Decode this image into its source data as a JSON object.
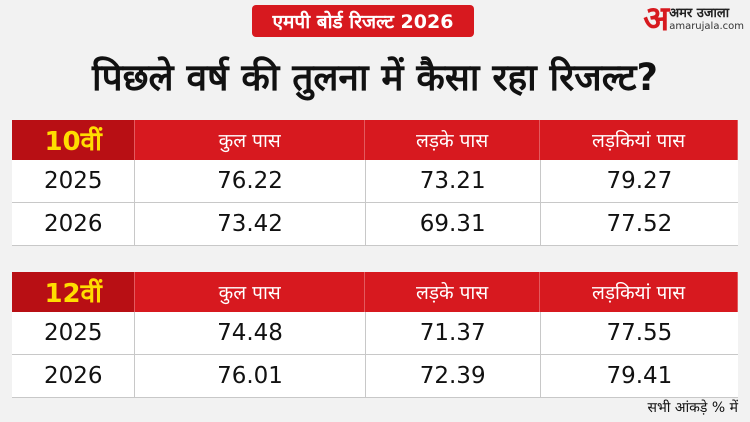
{
  "badge": "एमपी बोर्ड रिजल्ट 2026",
  "logo": {
    "mark": "अ",
    "name": "अमर उजाला",
    "site": "amarujala.com"
  },
  "title": "पिछले वर्ष की तुलना में कैसा रहा रिजल्ट?",
  "tables": [
    {
      "grade": "10वीं",
      "columns": [
        "कुल पास",
        "लड़के पास",
        "लड़कियां पास"
      ],
      "rows": [
        [
          "2025",
          "76.22",
          "73.21",
          "79.27"
        ],
        [
          "2026",
          "73.42",
          "69.31",
          "77.52"
        ]
      ]
    },
    {
      "grade": "12वीं",
      "columns": [
        "कुल पास",
        "लड़के पास",
        "लड़कियां पास"
      ],
      "rows": [
        [
          "2025",
          "74.48",
          "71.37",
          "77.55"
        ],
        [
          "2026",
          "76.01",
          "72.39",
          "79.41"
        ]
      ]
    }
  ],
  "footnote": "सभी आंकड़े % में"
}
